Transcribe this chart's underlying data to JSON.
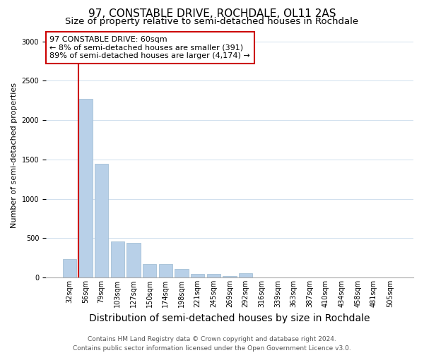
{
  "title": "97, CONSTABLE DRIVE, ROCHDALE, OL11 2AS",
  "subtitle": "Size of property relative to semi-detached houses in Rochdale",
  "xlabel": "Distribution of semi-detached houses by size in Rochdale",
  "ylabel": "Number of semi-detached properties",
  "categories": [
    "32sqm",
    "56sqm",
    "79sqm",
    "103sqm",
    "127sqm",
    "150sqm",
    "174sqm",
    "198sqm",
    "221sqm",
    "245sqm",
    "269sqm",
    "292sqm",
    "316sqm",
    "339sqm",
    "363sqm",
    "387sqm",
    "410sqm",
    "434sqm",
    "458sqm",
    "481sqm",
    "505sqm"
  ],
  "values": [
    230,
    2270,
    1445,
    460,
    440,
    175,
    175,
    105,
    45,
    45,
    20,
    55,
    0,
    0,
    0,
    0,
    0,
    0,
    0,
    0,
    0
  ],
  "bar_color": "#b8d0e8",
  "bar_edge_color": "#9ab8d0",
  "red_line_bar_index": 1,
  "property_label": "97 CONSTABLE DRIVE: 60sqm",
  "smaller_label": "← 8% of semi-detached houses are smaller (391)",
  "larger_label": "89% of semi-detached houses are larger (4,174) →",
  "annotation_box_edgecolor": "#cc0000",
  "ylim": [
    0,
    3100
  ],
  "yticks": [
    0,
    500,
    1000,
    1500,
    2000,
    2500,
    3000
  ],
  "footer1": "Contains HM Land Registry data © Crown copyright and database right 2024.",
  "footer2": "Contains public sector information licensed under the Open Government Licence v3.0.",
  "title_fontsize": 11,
  "subtitle_fontsize": 9.5,
  "xlabel_fontsize": 10,
  "ylabel_fontsize": 8,
  "tick_fontsize": 7,
  "annotation_fontsize": 8,
  "footer_fontsize": 6.5,
  "grid_color": "#d0e0ee"
}
